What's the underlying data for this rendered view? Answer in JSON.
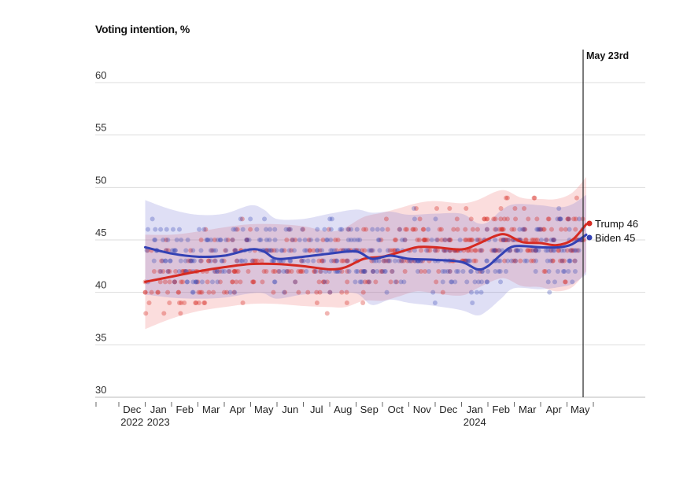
{
  "chart_data": {
    "type": "scatter",
    "title": "Voting intention, %",
    "ylabel": "",
    "xlabel": "",
    "ylim": [
      30,
      60
    ],
    "yticks": [
      30,
      35,
      40,
      45,
      50,
      55,
      60
    ],
    "grid": true,
    "xrange": [
      "2022-12-01",
      "2024-06-01"
    ],
    "xtick_labels": [
      {
        "m": "Dec",
        "y": "2022"
      },
      {
        "m": "Jan",
        "y": "2023"
      },
      {
        "m": "Feb",
        "y": ""
      },
      {
        "m": "Mar",
        "y": ""
      },
      {
        "m": "Apr",
        "y": ""
      },
      {
        "m": "May",
        "y": ""
      },
      {
        "m": "Jun",
        "y": ""
      },
      {
        "m": "Jul",
        "y": ""
      },
      {
        "m": "Aug",
        "y": ""
      },
      {
        "m": "Sep",
        "y": ""
      },
      {
        "m": "Oct",
        "y": ""
      },
      {
        "m": "Nov",
        "y": ""
      },
      {
        "m": "Dec",
        "y": ""
      },
      {
        "m": "Jan",
        "y": "2024"
      },
      {
        "m": "Feb",
        "y": ""
      },
      {
        "m": "Mar",
        "y": ""
      },
      {
        "m": "Apr",
        "y": ""
      },
      {
        "m": "May",
        "y": ""
      }
    ],
    "annotation": {
      "label": "May 23rd",
      "date": "2024-05-23"
    },
    "series": [
      {
        "name": "Trump",
        "color": "#d62a22",
        "final": 46,
        "legend": "Trump 46",
        "trend": [
          [
            1,
            41
          ],
          [
            2,
            41.5
          ],
          [
            3,
            42
          ],
          [
            4,
            42.4
          ],
          [
            5,
            42.7
          ],
          [
            6,
            42.7
          ],
          [
            7,
            42.5
          ],
          [
            8,
            42.2
          ],
          [
            8.6,
            42.4
          ],
          [
            9.3,
            43.2
          ],
          [
            10,
            43.4
          ],
          [
            10.6,
            43.8
          ],
          [
            11.3,
            44.3
          ],
          [
            12,
            44.3
          ],
          [
            13,
            44.1
          ],
          [
            13.6,
            44.6
          ],
          [
            14.3,
            45.4
          ],
          [
            14.7,
            45.5
          ],
          [
            15.3,
            44.8
          ],
          [
            16,
            44.7
          ],
          [
            16.6,
            44.5
          ],
          [
            17.2,
            45
          ],
          [
            17.73,
            46.5
          ]
        ],
        "band": [
          4.5,
          4,
          3.8,
          3.8,
          3.8,
          3.8,
          3.8,
          3.6,
          3.8,
          4,
          4.2,
          4.2,
          4.2,
          4.4,
          4.4,
          4.2,
          4.2,
          4.2,
          4.2,
          4.2,
          4.4,
          4.5,
          4.5
        ]
      },
      {
        "name": "Biden",
        "color": "#3341b4",
        "final": 45,
        "legend": "Biden 45",
        "trend": [
          [
            1,
            44.3
          ],
          [
            2,
            43.7
          ],
          [
            3,
            43.4
          ],
          [
            4,
            43.5
          ],
          [
            5,
            44.1
          ],
          [
            5.5,
            43.9
          ],
          [
            6,
            43.2
          ],
          [
            7,
            43.4
          ],
          [
            8,
            43.7
          ],
          [
            9,
            43.9
          ],
          [
            9.6,
            43.2
          ],
          [
            10.3,
            43.5
          ],
          [
            11,
            43.2
          ],
          [
            12,
            43.1
          ],
          [
            13,
            42.9
          ],
          [
            13.6,
            42.2
          ],
          [
            14,
            42.5
          ],
          [
            14.5,
            43.6
          ],
          [
            15,
            44.4
          ],
          [
            16,
            44.3
          ],
          [
            16.7,
            44.3
          ],
          [
            17.2,
            44.6
          ],
          [
            17.73,
            45.5
          ]
        ],
        "band": [
          4.5,
          4.2,
          4,
          4,
          4.2,
          4,
          3.8,
          3.6,
          3.8,
          4,
          4.4,
          4.2,
          4.2,
          4.4,
          4.6,
          4.4,
          4.2,
          4.2,
          4,
          4,
          3.8,
          3.8,
          3.8
        ]
      }
    ]
  }
}
